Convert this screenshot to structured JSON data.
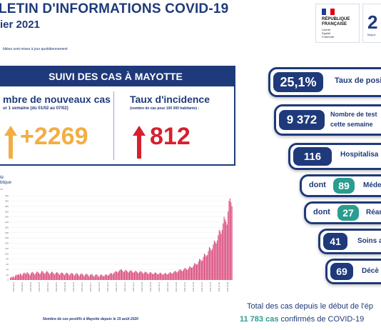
{
  "header": {
    "title": "LETIN D'INFORMATIONS COVID-19",
    "subtitle": "ier 2021",
    "note": "bliées sont mises à jour quotidiennement"
  },
  "logos": {
    "rf_line1": "RÉPUBLIQUE",
    "rf_line2": "FRANÇAISE",
    "rf_motto": "Liberté Égalité Fraternité",
    "ars_text": "Mayot.."
  },
  "panel": {
    "heading": "SUIVI DES CAS À MAYOTTE",
    "new_cases_title": "mbre de nouveaux cas",
    "new_cases_period": "ur 1 semaine (du 01/02 au 07/02)",
    "new_cases_value": "+2269",
    "incidence_title": "Taux d'incidence",
    "incidence_sub": "(nombre de cas pour 100 000 habitants) :",
    "incidence_value": "812"
  },
  "chart_section": {
    "source_line1": "té",
    "source_line2": "blique",
    "source_line3": "ce",
    "caption": "Nombre de cas positifs à Mayotte depuis le 15 août 2020"
  },
  "chart_data": {
    "type": "bar",
    "title": "Nombre de cas positifs à Mayotte depuis le 15 août 2020",
    "xlabel": "",
    "ylabel": "",
    "values": [
      8,
      12,
      10,
      14,
      9,
      16,
      20,
      18,
      22,
      19,
      25,
      21,
      17,
      24,
      28,
      26,
      23,
      30,
      27,
      22,
      18,
      26,
      31,
      29,
      24,
      20,
      27,
      33,
      30,
      26,
      22,
      28,
      35,
      32,
      27,
      23,
      29,
      34,
      31,
      26,
      21,
      27,
      32,
      29,
      25,
      20,
      26,
      30,
      28,
      24,
      19,
      25,
      29,
      27,
      23,
      18,
      24,
      28,
      26,
      22,
      17,
      23,
      27,
      25,
      21,
      16,
      22,
      26,
      24,
      20,
      15,
      21,
      25,
      23,
      19,
      14,
      20,
      24,
      22,
      18,
      13,
      19,
      23,
      21,
      17,
      12,
      18,
      22,
      20,
      16,
      11,
      17,
      21,
      19,
      15,
      14,
      18,
      22,
      20,
      16,
      19,
      23,
      27,
      25,
      21,
      26,
      30,
      34,
      32,
      28,
      33,
      37,
      41,
      39,
      35,
      30,
      34,
      38,
      36,
      32,
      28,
      33,
      37,
      35,
      31,
      27,
      31,
      35,
      33,
      29,
      25,
      30,
      34,
      32,
      28,
      24,
      28,
      32,
      30,
      26,
      22,
      26,
      30,
      28,
      24,
      22,
      25,
      29,
      27,
      23,
      21,
      24,
      28,
      26,
      22,
      20,
      23,
      27,
      25,
      21,
      22,
      26,
      30,
      28,
      24,
      26,
      30,
      35,
      33,
      29,
      31,
      36,
      41,
      39,
      35,
      34,
      40,
      46,
      44,
      40,
      38,
      45,
      52,
      50,
      46,
      48,
      56,
      64,
      62,
      58,
      60,
      70,
      80,
      78,
      72,
      75,
      88,
      100,
      96,
      90,
      95,
      110,
      125,
      120,
      112,
      118,
      135,
      150,
      145,
      138,
      150,
      170,
      190,
      185,
      175,
      190,
      215,
      240,
      230,
      220,
      210,
      260,
      300,
      310,
      295,
      280
    ],
    "ylim": [
      0,
      320
    ],
    "ytick_labels": [
      "320",
      "300",
      "280",
      "260",
      "240",
      "220",
      "200",
      "180",
      "160",
      "140",
      "120",
      "100",
      "80",
      "60",
      "40",
      "20",
      "0"
    ],
    "xtick_labels": [
      "2020-08-15",
      "2020-08-22",
      "2020-08-29",
      "2020-09-05",
      "2020-09-12",
      "2020-09-19",
      "2020-09-26",
      "2020-10-03",
      "2020-10-10",
      "2020-10-17",
      "2020-10-24",
      "2020-10-31",
      "2020-11-07",
      "2020-11-14",
      "2020-11-21",
      "2020-11-28",
      "2020-12-05",
      "2020-12-12",
      "2020-12-19",
      "2020-12-26",
      "2021-01-02",
      "2021-01-09",
      "2021-01-16",
      "2021-01-23",
      "2021-01-30",
      "2021-02-06"
    ],
    "bar_color": "#d9467a"
  },
  "stats": {
    "positivity_value": "25,1%",
    "positivity_label": "Taux de posi",
    "tests_value": "9 372",
    "tests_label1": "Nombre de test",
    "tests_label2": "cette semaine",
    "hosp_value": "116",
    "hosp_label": "Hospitalisa",
    "med_prefix": "dont",
    "med_value": "89",
    "med_label": "Méde",
    "rea_prefix": "dont",
    "rea_value": "27",
    "rea_label": "Réani",
    "soins_value": "41",
    "soins_label": "Soins a",
    "deces_value": "69",
    "deces_label": "Décè"
  },
  "totals": {
    "line1": "Total des cas depuis le début de l'ép",
    "count": "11 783 cas",
    "line2_rest": " confirmés de COVID-19"
  }
}
